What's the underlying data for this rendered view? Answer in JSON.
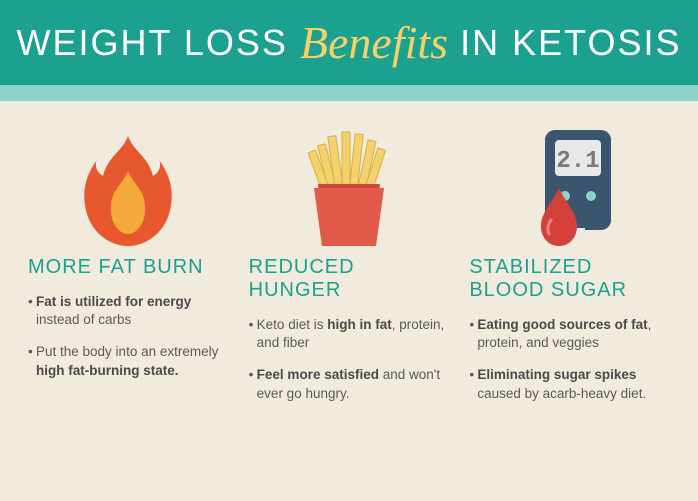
{
  "colors": {
    "header_bg": "#1ca08f",
    "accent_bar": "#8cd4c9",
    "content_bg": "#f1ebdd",
    "title_text": "#ffffff",
    "script_text": "#f4d16a",
    "col_title": "#1ca08f",
    "body_text": "#5a5a5a",
    "emph_text": "#4a4a4a",
    "flame_outer": "#e8582f",
    "flame_inner": "#f4a93a",
    "fries_box": "#e15a4a",
    "fries_box_dark": "#c94a3c",
    "fries": "#f4d16a",
    "meter_body": "#3b556e",
    "meter_screen": "#e8e8e8",
    "meter_screen_dark": "#7a7a7a",
    "drop": "#d4403a"
  },
  "header": {
    "part1": "WEIGHT LOSS",
    "script": "Benefits",
    "part2": "IN KETOSIS"
  },
  "columns": [
    {
      "icon": "flame",
      "title": "MORE FAT BURN",
      "bullets": [
        {
          "html": "<b>Fat is utilized for energy</b> instead of carbs"
        },
        {
          "html": "Put the body into an extremely <b>high fat-burning state.</b>"
        }
      ]
    },
    {
      "icon": "fries",
      "title": "REDUCED HUNGER",
      "bullets": [
        {
          "html": "Keto diet is <b>high in fat</b>, protein, and fiber"
        },
        {
          "html": "<b>Feel more satisfied</b> and won't ever go hungry."
        }
      ]
    },
    {
      "icon": "meter",
      "title": "STABILIZED BLOOD SUGAR",
      "bullets": [
        {
          "html": "<b>Eating good sources of fat</b>, protein, and veggies"
        },
        {
          "html": "<b>Eliminating sugar spikes</b> caused by acarb-heavy diet."
        }
      ]
    }
  ],
  "meter_reading": "2.1"
}
